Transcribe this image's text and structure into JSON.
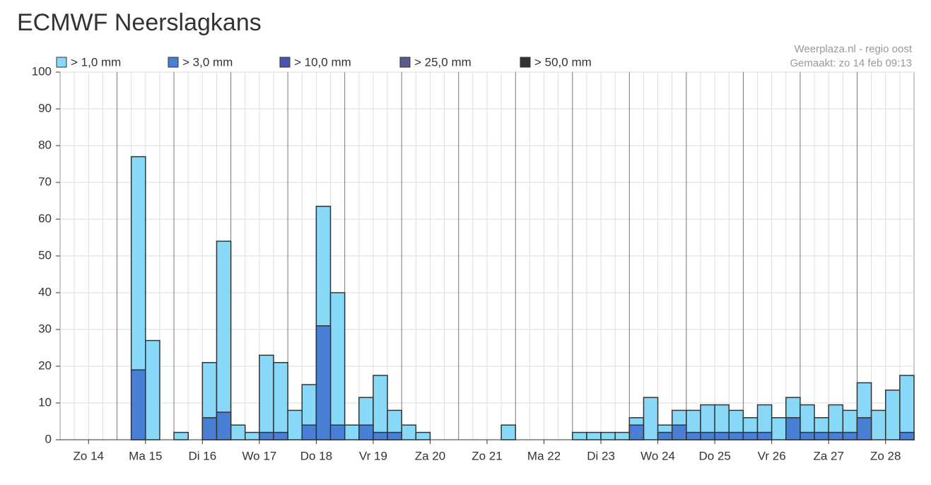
{
  "chart_data": {
    "type": "bar",
    "title": "ECMWF Neerslagkans",
    "source": "Weerplaza.nl - regio oost",
    "made": "Gemaakt: zo 14 feb 09:13",
    "categories": [
      null,
      null,
      "Zo 14",
      null,
      null,
      null,
      "Ma 15",
      null,
      null,
      null,
      "Di 16",
      null,
      null,
      null,
      "Wo 17",
      null,
      null,
      null,
      "Do 18",
      null,
      null,
      null,
      "Vr 19",
      null,
      null,
      null,
      "Za 20",
      null,
      null,
      null,
      "Zo 21",
      null,
      null,
      null,
      "Ma 22",
      null,
      null,
      null,
      "Di 23",
      null,
      null,
      null,
      "Wo 24",
      null,
      null,
      null,
      "Do 25",
      null,
      null,
      null,
      "Vr 26",
      null,
      null,
      null,
      "Za 27",
      null,
      null,
      null,
      "Zo 28",
      null
    ],
    "series": [
      {
        "name": "> 1,0 mm",
        "color": "#88d8f8",
        "values": [
          0,
          0,
          0,
          0,
          0,
          77,
          27,
          0,
          2,
          0,
          21,
          54,
          4,
          2,
          23,
          21,
          8,
          15,
          63.5,
          40,
          4,
          11.5,
          17.5,
          8,
          4,
          2,
          0,
          0,
          0,
          0,
          0,
          4,
          0,
          0,
          0,
          0,
          2,
          2,
          2,
          2,
          6,
          11.5,
          4,
          8,
          8,
          9.5,
          9.5,
          8,
          6,
          9.5,
          6,
          11.5,
          9.5,
          6,
          9.5,
          8,
          15.5,
          8,
          13.5,
          17.5
        ]
      },
      {
        "name": "> 3,0 mm",
        "color": "#4a7fd6",
        "values": [
          0,
          0,
          0,
          0,
          0,
          19,
          0,
          0,
          0,
          0,
          6,
          7.5,
          0,
          0,
          2,
          2,
          0,
          4,
          31,
          4,
          0,
          4,
          2,
          2,
          0,
          0,
          0,
          0,
          0,
          0,
          0,
          0,
          0,
          0,
          0,
          0,
          0,
          0,
          0,
          0,
          4,
          0,
          2,
          4,
          2,
          2,
          2,
          2,
          2,
          2,
          0,
          6,
          2,
          2,
          2,
          2,
          6,
          0,
          0,
          2
        ]
      },
      {
        "name": "> 10,0 mm",
        "color": "#4a55b0",
        "values": [
          0,
          0,
          0,
          0,
          0,
          0,
          0,
          0,
          0,
          0,
          0,
          0,
          0,
          0,
          0,
          0,
          0,
          0,
          0,
          0,
          0,
          0,
          0,
          0,
          0,
          0,
          0,
          0,
          0,
          0,
          0,
          0,
          0,
          0,
          0,
          0,
          0,
          0,
          0,
          0,
          0,
          0,
          0,
          0,
          0,
          0,
          0,
          0,
          0,
          0,
          0,
          0,
          0,
          0,
          0,
          0,
          0,
          0,
          0,
          0
        ]
      },
      {
        "name": "> 25,0 mm",
        "color": "#5a5a8c",
        "values": [
          0,
          0,
          0,
          0,
          0,
          0,
          0,
          0,
          0,
          0,
          0,
          0,
          0,
          0,
          0,
          0,
          0,
          0,
          0,
          0,
          0,
          0,
          0,
          0,
          0,
          0,
          0,
          0,
          0,
          0,
          0,
          0,
          0,
          0,
          0,
          0,
          0,
          0,
          0,
          0,
          0,
          0,
          0,
          0,
          0,
          0,
          0,
          0,
          0,
          0,
          0,
          0,
          0,
          0,
          0,
          0,
          0,
          0,
          0,
          0
        ]
      },
      {
        "name": "> 50,0 mm",
        "color": "#333333",
        "values": [
          0,
          0,
          0,
          0,
          0,
          0,
          0,
          0,
          0,
          0,
          0,
          0,
          0,
          0,
          0,
          0,
          0,
          0,
          0,
          0,
          0,
          0,
          0,
          0,
          0,
          0,
          0,
          0,
          0,
          0,
          0,
          0,
          0,
          0,
          0,
          0,
          0,
          0,
          0,
          0,
          0,
          0,
          0,
          0,
          0,
          0,
          0,
          0,
          0,
          0,
          0,
          0,
          0,
          0,
          0,
          0,
          0,
          0,
          0,
          0
        ]
      }
    ],
    "ylim": [
      0,
      100
    ],
    "yticks": [
      0,
      10,
      20,
      30,
      40,
      50,
      60,
      70,
      80,
      90,
      100
    ],
    "grid": true
  }
}
